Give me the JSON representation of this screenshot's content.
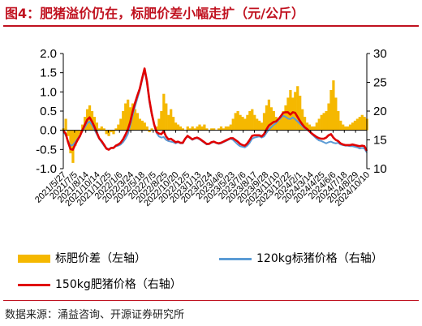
{
  "title": "图4：肥猪溢价仍在，标肥价差小幅走扩（元/公斤）",
  "source": "数据来源：涌益咨询、开源证券研究所",
  "chart_data": {
    "type": "area+line",
    "x_ticks": [
      "2021/5/27",
      "2021/7/5",
      "2021/8/14",
      "2021/10/14",
      "2021/11/25",
      "2022/1/6",
      "2022/3/24",
      "2022/5/18",
      "2022/7/5",
      "2022/8/25",
      "2022/10/20",
      "2022/12/5",
      "2023/1/13",
      "2023/2/24",
      "2023/4/6",
      "2023/5/23",
      "2023/7/6",
      "2023/8/17",
      "2023/9/28",
      "2023/11/10",
      "2023/12/22",
      "2024/2/1",
      "2024/3/14",
      "2024/4/25",
      "2024/6/6",
      "2024/7/18",
      "2024/8/29",
      "2024/10/10"
    ],
    "left_axis": {
      "ylim": [
        -1.0,
        2.0
      ],
      "ticks": [
        "-1.0",
        "-0.5",
        "0.0",
        "0.5",
        "1.0",
        "1.5",
        "2.0"
      ]
    },
    "right_axis": {
      "ylim": [
        10,
        30
      ],
      "ticks": [
        "10",
        "15",
        "20",
        "25",
        "30"
      ]
    },
    "series": [
      {
        "name": "标肥价差（左轴）",
        "axis": "left",
        "type": "area",
        "color": "#f5b800",
        "values": [
          0.05,
          0.3,
          -0.15,
          -0.6,
          -0.85,
          -0.4,
          -0.25,
          -0.1,
          0.15,
          0.35,
          0.55,
          0.65,
          0.5,
          0.35,
          0.2,
          0.05,
          0.1,
          0.05,
          -0.1,
          -0.15,
          -0.05,
          -0.1,
          0.05,
          0.15,
          0.3,
          0.5,
          0.7,
          0.8,
          0.6,
          0.7,
          0.55,
          0.45,
          0.3,
          0.25,
          0.2,
          0.1,
          -0.05,
          0.05,
          0.0,
          0.1,
          0.3,
          0.5,
          0.95,
          0.7,
          0.4,
          0.55,
          0.35,
          0.2,
          0.15,
          0.1,
          0.05,
          0.0,
          0.1,
          0.05,
          0.1,
          0.05,
          0.1,
          0.15,
          0.1,
          0.15,
          0.05,
          0.0,
          0.05,
          0.05,
          0.0,
          0.05,
          0.1,
          0.05,
          0.1,
          0.1,
          0.15,
          0.3,
          0.45,
          0.5,
          0.4,
          0.35,
          0.3,
          0.4,
          0.5,
          0.55,
          0.4,
          0.3,
          0.25,
          0.2,
          0.45,
          0.65,
          0.8,
          0.6,
          0.5,
          0.35,
          0.25,
          0.35,
          0.5,
          0.65,
          0.85,
          1.05,
          0.85,
          1.0,
          1.15,
          0.9,
          0.55,
          0.35,
          0.2,
          0.15,
          0.1,
          0.1,
          0.2,
          0.3,
          0.4,
          0.45,
          0.5,
          0.7,
          1.05,
          1.3,
          0.85,
          0.5,
          0.25,
          0.15,
          0.1,
          0.1,
          0.15,
          0.2,
          0.25,
          0.3,
          0.35,
          0.4,
          0.35,
          0.3
        ]
      },
      {
        "name": "120kg标猪价格（右轴）",
        "axis": "right",
        "type": "line",
        "color": "#5b9bd5",
        "values": [
          16.5,
          15.8,
          14.8,
          14.0,
          14.1,
          14.6,
          15.2,
          15.8,
          16.5,
          17.2,
          17.9,
          18.2,
          17.6,
          16.8,
          16.0,
          15.2,
          14.6,
          14.0,
          13.6,
          13.4,
          13.6,
          13.7,
          13.9,
          14.0,
          14.2,
          14.6,
          15.2,
          16.0,
          17.5,
          19.2,
          20.8,
          22.2,
          23.6,
          25.4,
          27.2,
          24.8,
          21.6,
          19.4,
          17.6,
          16.2,
          15.6,
          15.4,
          15.5,
          15.0,
          14.8,
          14.7,
          14.6,
          14.4,
          14.6,
          14.4,
          14.4,
          15.2,
          15.6,
          15.3,
          15.0,
          15.2,
          15.3,
          15.1,
          14.8,
          14.5,
          14.2,
          14.3,
          14.5,
          14.6,
          14.5,
          14.3,
          14.4,
          14.6,
          14.8,
          15.0,
          15.2,
          15.0,
          14.6,
          14.2,
          13.9,
          13.8,
          13.7,
          14.0,
          14.5,
          15.2,
          15.4,
          15.5,
          15.6,
          15.4,
          15.6,
          16.2,
          16.8,
          17.2,
          17.6,
          17.9,
          18.4,
          18.8,
          19.2,
          19.0,
          18.7,
          18.6,
          18.9,
          18.6,
          18.2,
          17.8,
          17.4,
          17.0,
          16.8,
          16.4,
          16.0,
          15.6,
          15.2,
          14.9,
          14.8,
          14.6,
          14.4,
          14.6,
          14.7,
          14.5,
          14.4,
          14.5,
          14.2,
          14.1,
          14.0,
          14.0,
          13.9,
          13.9,
          13.8,
          13.7,
          13.5,
          13.6,
          13.5,
          12.8
        ]
      },
      {
        "name": "150kg肥猪价格（右轴）",
        "axis": "right",
        "type": "line",
        "color": "#e00000",
        "values": [
          16.6,
          16.1,
          14.6,
          13.4,
          13.3,
          14.2,
          15.0,
          15.7,
          16.7,
          17.6,
          18.5,
          18.9,
          18.2,
          17.3,
          16.3,
          15.3,
          14.8,
          14.2,
          13.5,
          13.3,
          13.6,
          13.6,
          14.0,
          14.2,
          14.5,
          15.1,
          15.9,
          16.8,
          18.1,
          19.9,
          21.4,
          22.7,
          23.9,
          25.7,
          27.4,
          25.2,
          22.0,
          19.6,
          17.7,
          16.4,
          16.1,
          16.0,
          16.5,
          15.6,
          15.1,
          15.2,
          14.9,
          14.6,
          14.7,
          14.5,
          14.5,
          15.2,
          15.7,
          15.4,
          15.1,
          15.3,
          15.4,
          15.2,
          14.9,
          14.6,
          14.3,
          14.3,
          14.6,
          14.7,
          14.5,
          14.4,
          14.5,
          14.7,
          14.9,
          15.1,
          15.3,
          15.3,
          15.0,
          14.7,
          14.3,
          14.1,
          14.0,
          14.4,
          15.0,
          15.7,
          15.8,
          15.8,
          15.8,
          15.6,
          16.0,
          16.8,
          17.5,
          17.8,
          18.1,
          18.2,
          18.6,
          19.1,
          19.7,
          19.8,
          19.8,
          19.4,
          19.8,
          19.7,
          19.0,
          18.3,
          17.7,
          17.2,
          16.9,
          16.5,
          16.1,
          15.8,
          15.5,
          15.3,
          15.2,
          15.2,
          15.4,
          15.8,
          16.0,
          15.4,
          15.0,
          14.8,
          14.4,
          14.2,
          14.1,
          14.1,
          14.1,
          14.2,
          14.1,
          14.0,
          13.9,
          14.0,
          13.9,
          13.1
        ]
      }
    ],
    "legend_placement": "bottom",
    "grid": false
  }
}
